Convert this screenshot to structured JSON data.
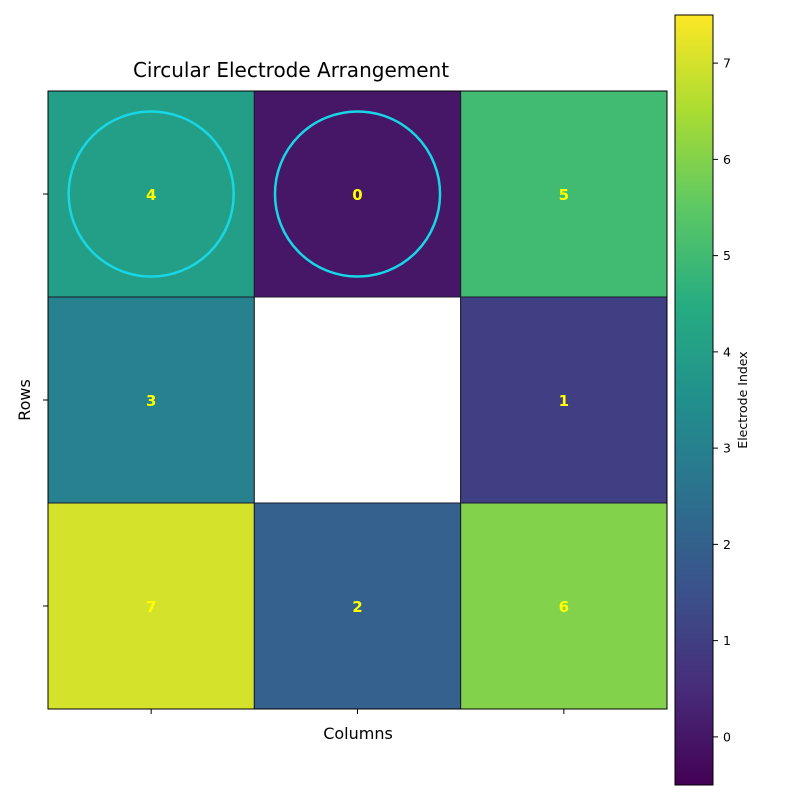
{
  "chart_data": {
    "type": "heatmap",
    "title": "Circular Electrode Arrangement",
    "xlabel": "Columns",
    "ylabel": "Rows",
    "rows": 3,
    "cols": 3,
    "cells": [
      {
        "row": 0,
        "col": 0,
        "value": 4,
        "label": "4",
        "ring": true
      },
      {
        "row": 0,
        "col": 1,
        "value": 0,
        "label": "0",
        "ring": true
      },
      {
        "row": 0,
        "col": 2,
        "value": 5,
        "label": "5",
        "ring": false
      },
      {
        "row": 1,
        "col": 0,
        "value": 3,
        "label": "3",
        "ring": false
      },
      {
        "row": 1,
        "col": 1,
        "value": null,
        "label": "",
        "ring": false
      },
      {
        "row": 1,
        "col": 2,
        "value": 1,
        "label": "1",
        "ring": false
      },
      {
        "row": 2,
        "col": 0,
        "value": 7,
        "label": "7",
        "ring": false
      },
      {
        "row": 2,
        "col": 1,
        "value": 2,
        "label": "2",
        "ring": false
      },
      {
        "row": 2,
        "col": 2,
        "value": 6,
        "label": "6",
        "ring": false
      }
    ],
    "colorbar": {
      "label": "Electrode Index",
      "range": [
        -0.5,
        7.5
      ],
      "ticks": [
        0,
        1,
        2,
        3,
        4,
        5,
        6,
        7
      ],
      "colormap": "viridis"
    },
    "colors": {
      "cell_text": "#ffff00",
      "ring": "#17d6e6",
      "cell_edge": "#1a1a2e"
    }
  }
}
